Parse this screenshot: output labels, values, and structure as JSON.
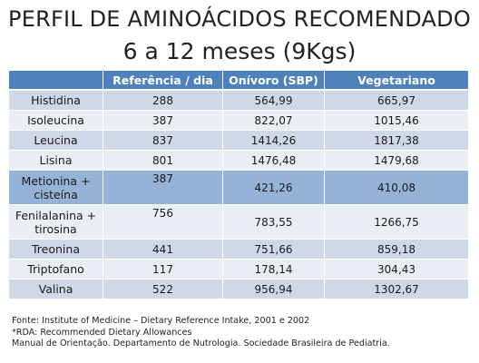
{
  "title": {
    "line1": "PERFIL DE  AMINOÁCIDOS RECOMENDADO",
    "line2": "6 a 12 meses (9Kgs)"
  },
  "table": {
    "headers": [
      "",
      "Referência / dia",
      "Onívoro (SBP)",
      "Vegetariano"
    ],
    "rows": [
      {
        "name": "Histidina",
        "ref": "288",
        "onivoro": "564,99",
        "vegetariano": "665,97"
      },
      {
        "name": "Isoleucina",
        "ref": "387",
        "onivoro": "822,07",
        "vegetariano": "1015,46"
      },
      {
        "name": "Leucina",
        "ref": "837",
        "onivoro": "1414,26",
        "vegetariano": "1817,38"
      },
      {
        "name": "Lisina",
        "ref": "801",
        "onivoro": "1476,48",
        "vegetariano": "1479,68"
      },
      {
        "name": "Metionina + cisteína",
        "ref": "387",
        "onivoro": "421,26",
        "vegetariano": "410,08"
      },
      {
        "name": "Fenilalanina + tirosina",
        "ref": "756",
        "onivoro": "783,55",
        "vegetariano": "1266,75"
      },
      {
        "name": "Treonina",
        "ref": "441",
        "onivoro": "751,66",
        "vegetariano": "859,18"
      },
      {
        "name": "Triptofano",
        "ref": "117",
        "onivoro": "178,14",
        "vegetariano": "304,43"
      },
      {
        "name": "Valina",
        "ref": "522",
        "onivoro": "956,94",
        "vegetariano": "1302,67"
      }
    ]
  },
  "notes": {
    "source": "Fonte: Institute of Medicine – Dietary Reference Intake, 2001 e 2002",
    "rda": "*RDA: Recommended Dietary Allowances",
    "manual": "Manual de Orientação. Departamento de Nutrologia. Sociedade Brasileira de Pediatria."
  },
  "colors": {
    "header": "#4f81bd",
    "row_odd": "#d0d8e8",
    "row_even": "#e9edf4",
    "row_selected": "#95b3d7"
  }
}
